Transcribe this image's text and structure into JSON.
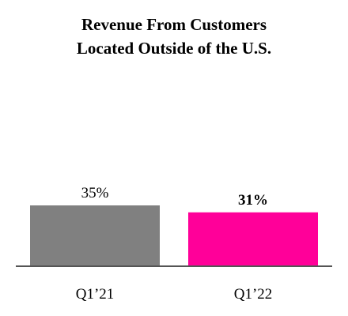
{
  "chart_data": {
    "type": "bar",
    "title_lines": [
      "Revenue From Customers",
      "Located Outside of the U.S."
    ],
    "categories": [
      "Q1’21",
      "Q1’22"
    ],
    "values": [
      35,
      31
    ],
    "value_labels": [
      "35%",
      "31%"
    ],
    "bar_colors": [
      "#808080",
      "#FF0099"
    ],
    "bold_value_labels": [
      false,
      true
    ],
    "ylim": [
      0,
      40
    ],
    "grid": false,
    "legend": "none",
    "axis_color": "#555555"
  }
}
